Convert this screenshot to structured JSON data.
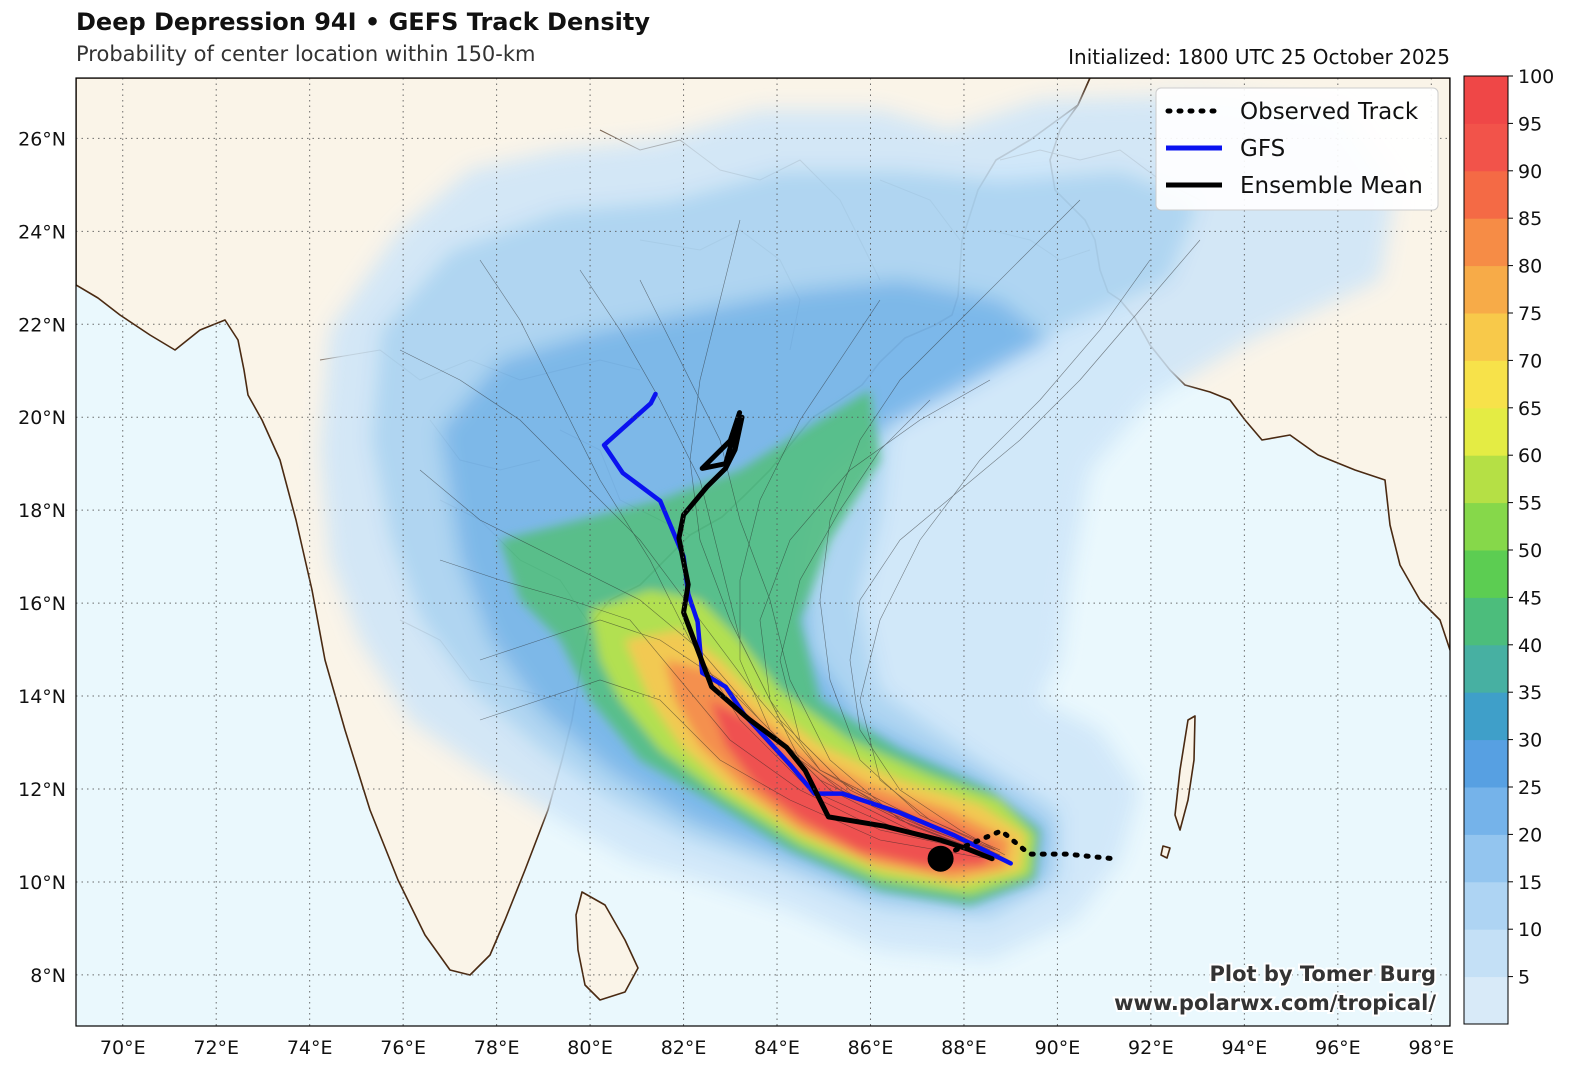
{
  "header": {
    "title": "Deep Depression 94I • GEFS Track Density",
    "subtitle": "Probability of center location within 150-km",
    "initialized": "Initialized: 1800 UTC 25 October 2025"
  },
  "map": {
    "lon_range": [
      69,
      98.4
    ],
    "lat_range": [
      6.9,
      27.3
    ],
    "lon_ticks": [
      "70°E",
      "72°E",
      "74°E",
      "76°E",
      "78°E",
      "80°E",
      "82°E",
      "84°E",
      "86°E",
      "88°E",
      "90°E",
      "92°E",
      "94°E",
      "96°E",
      "98°E"
    ],
    "lat_ticks": [
      "8°N",
      "10°N",
      "12°N",
      "14°N",
      "16°N",
      "18°N",
      "20°N",
      "22°N",
      "24°N",
      "26°N"
    ],
    "colors": {
      "land": "#faf4e8",
      "ocean": "#eaf8fd",
      "coast": "#4a2a12"
    }
  },
  "legend": {
    "items": [
      {
        "label": "Observed Track",
        "style": "dotted",
        "color": "#000000"
      },
      {
        "label": "GFS",
        "style": "solid",
        "color": "#0a12f0"
      },
      {
        "label": "Ensemble Mean",
        "style": "solid",
        "color": "#000000"
      }
    ]
  },
  "colorbar": {
    "ticks": [
      "5",
      "10",
      "15",
      "20",
      "25",
      "30",
      "35",
      "40",
      "45",
      "50",
      "55",
      "60",
      "65",
      "70",
      "75",
      "80",
      "85",
      "90",
      "95",
      "100"
    ],
    "colors": [
      "#d8eaf8",
      "#c4e0f6",
      "#aed4f3",
      "#93c5ef",
      "#75b3ea",
      "#57a0e2",
      "#3f9fc9",
      "#47b0a2",
      "#4cbd7c",
      "#5ccd52",
      "#86d84a",
      "#b5e045",
      "#e4ec44",
      "#f7e24a",
      "#f8c94a",
      "#f7ab48",
      "#f68c46",
      "#f46a45",
      "#f2534a",
      "#ef4747"
    ]
  },
  "credit": {
    "line1": "Plot by Tomer Burg",
    "line2": "www.polarwx.com/tropical/"
  },
  "tracks": {
    "gfs": [
      [
        81.4,
        20.5
      ],
      [
        81.3,
        20.3
      ],
      [
        80.3,
        19.4
      ],
      [
        80.7,
        18.8
      ],
      [
        81.5,
        18.2
      ],
      [
        82.0,
        17.0
      ],
      [
        82.1,
        16.2
      ],
      [
        82.3,
        15.6
      ],
      [
        82.4,
        14.5
      ],
      [
        82.9,
        14.2
      ],
      [
        83.3,
        13.6
      ],
      [
        84.3,
        12.5
      ],
      [
        84.8,
        11.9
      ],
      [
        85.4,
        11.9
      ],
      [
        86.6,
        11.5
      ],
      [
        87.8,
        11.0
      ],
      [
        88.6,
        10.6
      ],
      [
        89.0,
        10.4
      ]
    ],
    "mean": [
      [
        83.2,
        20.1
      ],
      [
        83.0,
        19.5
      ],
      [
        82.7,
        19.2
      ],
      [
        82.4,
        18.9
      ],
      [
        82.9,
        19.0
      ],
      [
        83.1,
        19.7
      ],
      [
        83.25,
        20.0
      ],
      [
        83.1,
        19.3
      ],
      [
        82.9,
        18.9
      ],
      [
        82.5,
        18.5
      ],
      [
        82.0,
        17.9
      ],
      [
        81.9,
        17.4
      ],
      [
        82.1,
        16.4
      ],
      [
        82.0,
        15.8
      ],
      [
        82.3,
        15.0
      ],
      [
        82.6,
        14.2
      ],
      [
        83.4,
        13.5
      ],
      [
        84.2,
        12.9
      ],
      [
        84.6,
        12.4
      ],
      [
        85.1,
        11.4
      ],
      [
        86.3,
        11.2
      ],
      [
        87.5,
        10.9
      ],
      [
        88.1,
        10.7
      ],
      [
        88.6,
        10.5
      ]
    ],
    "observed": [
      [
        87.6,
        10.6
      ],
      [
        88.1,
        10.8
      ],
      [
        88.8,
        11.1
      ],
      [
        89.4,
        10.6
      ],
      [
        90.2,
        10.6
      ],
      [
        91.2,
        10.5
      ]
    ],
    "current_position": [
      87.5,
      10.5
    ]
  }
}
